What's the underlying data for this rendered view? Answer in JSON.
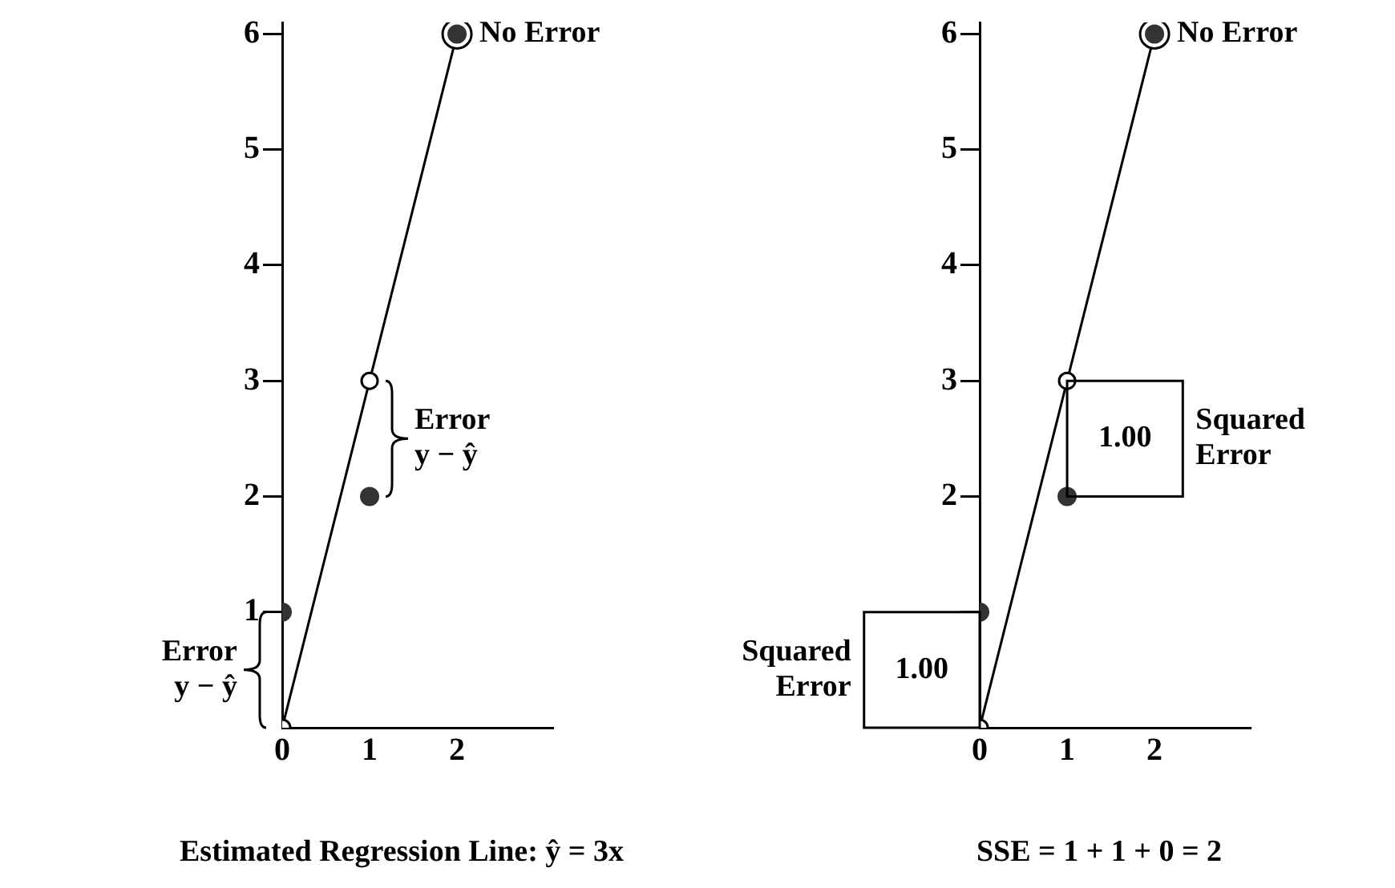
{
  "chart_data": [
    {
      "type": "scatter",
      "x": [
        0,
        1,
        2
      ],
      "xlim": [
        0,
        3.1
      ],
      "xticks": [
        0,
        1,
        2
      ],
      "ylim": [
        0,
        6.1
      ],
      "yticks": [
        1,
        2,
        3,
        4,
        5,
        6
      ],
      "grid": false,
      "legend": false,
      "series": [
        {
          "type": "line",
          "color": "#000000",
          "marker": "circle",
          "values": [
            0,
            3,
            6
          ]
        },
        {
          "color": "#333333",
          "marker": "circle",
          "values": [
            1,
            2,
            6
          ]
        }
      ],
      "annotations": [
        {
          "text": "No Error",
          "x": 2,
          "y": 6
        },
        {
          "text": "Error\ny − ŷ",
          "x": 1,
          "y": 2
        },
        {
          "text": "Error\ny − ŷ",
          "x": 0,
          "y": 1
        },
        "Estimated Regression Line: ŷ = 3x"
      ]
    },
    {
      "type": "scatter",
      "x": [
        0,
        1,
        2
      ],
      "xlim": [
        0,
        3.1
      ],
      "xticks": [
        0,
        1,
        2
      ],
      "ylim": [
        0,
        6.1
      ],
      "yticks": [
        {
          "value": 1,
          "label": null
        },
        2,
        3,
        4,
        5,
        6
      ],
      "grid": false,
      "legend": false,
      "series": [
        {
          "type": "line",
          "color": "#000000",
          "marker": "circle",
          "values": [
            0,
            3,
            6
          ]
        },
        {
          "color": "#333333",
          "marker": "circle",
          "values": [
            1,
            2,
            6
          ]
        }
      ],
      "annotations": [
        {
          "text": "No Error",
          "x": 2,
          "y": 6
        },
        {
          "text": "1.00",
          "x": 1,
          "y": 2
        },
        {
          "text": "1.00",
          "x": 0,
          "y": 1
        },
        "Squared\nError",
        "Squared\nError",
        "SSE = 1 + 1 + 0 = 2"
      ]
    }
  ]
}
